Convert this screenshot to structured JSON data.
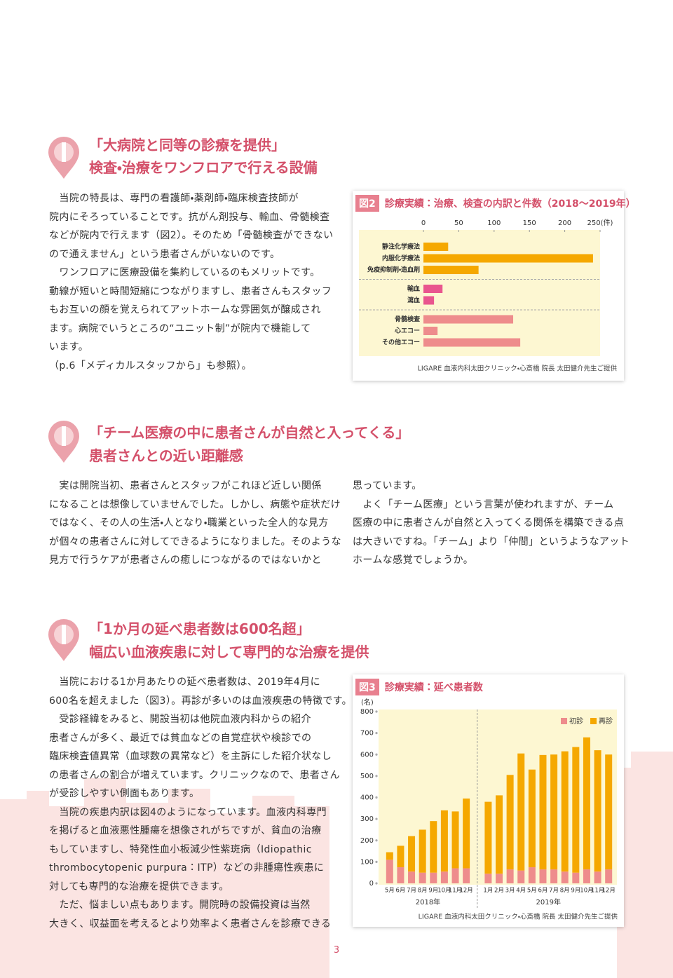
{
  "sections": [
    {
      "heading": [
        "「大病院と同等の診療を提供」",
        "検査・治療をワンフロアで行える設備"
      ],
      "columns": [
        [
          "　当院の特長は、専門の看護師・薬剤師・臨床検査技師が",
          "院内にそろっていることです。抗がん剤投与、輸血、骨髄検査",
          "などが院内で行えます（図2）。そのため「骨髄検査ができない",
          "ので通えません」という患者さんがいないのです。",
          "　ワンフロアに医療設備を集約しているのもメリットです。",
          "動線が短いと時間短縮につながりますし、患者さんもスタッフ",
          "もお互いの顔を覚えられてアットホームな雰囲気が醸成され",
          "ます。病院でいうところの“ユニット制”が院内で機能して",
          "います。",
          "（p.6「メディカルスタッフから」も参照）。"
        ]
      ]
    },
    {
      "heading": [
        "「チーム医療の中に患者さんが自然と入ってくる」",
        "患者さんとの近い距離感"
      ],
      "columns": [
        [
          "　実は開院当初、患者さんとスタッフがこれほど近しい関係",
          "になることは想像していませんでした。しかし、病態や症状だけ",
          "ではなく、その人の生活・人となり・職業といった全人的な見方",
          "が個々の患者さんに対してできるようになりました。そのような",
          "見方で行うケアが患者さんの癒しにつながるのではないかと"
        ],
        [
          "思っています。",
          "　よく「チーム医療」という言葉が使われますが、チーム",
          "医療の中に患者さんが自然と入ってくる関係を構築できる点",
          "は大きいですね。「チーム」より「仲間」というようなアット",
          "ホームな感覚でしょうか。"
        ]
      ]
    },
    {
      "heading": [
        "「1か月の延べ患者数は600名超」",
        "幅広い血液疾患に対して専門的な治療を提供"
      ],
      "columns": [
        [
          "　当院における1か月あたりの延べ患者数は、2019年4月に",
          "600名を超えました（図3）。再診が多いのは血液疾患の特徴です。",
          "　受診経緯をみると、開設当初は他院血液内科からの紹介",
          "患者さんが多く、最近では貧血などの自覚症状や検診での",
          "臨床検査値異常（血球数の異常など）を主訴にした紹介状なし",
          "の患者さんの割合が増えています。クリニックなので、患者さん",
          "が受診しやすい側面もあります。",
          "　当院の疾患内訳は図4のようになっています。血液内科専門",
          "を掲げると血液悪性腫瘍を想像されがちですが、貧血の治療",
          "もしていますし、特発性血小板減少性紫斑病（Idiopathic",
          "thrombocytopenic purpura：ITP）などの非腫瘍性疾患に",
          "対しても専門的な治療を提供できます。",
          "　ただ、悩ましい点もあります。開院時の設備投資は当然",
          "大きく、収益面を考えるとより効率よく患者さんを診療できる"
        ]
      ]
    }
  ],
  "chart_data": [
    {
      "type": "bar",
      "orientation": "horizontal",
      "figure_label": "図2",
      "title": "診療実績：治療、検査の内訳と件数（2018〜2019年）",
      "categories": [
        "静注化学療法",
        "内服化学療法",
        "免疫抑制剤・造血剤",
        "輸血",
        "瀉血",
        "骨髄検査",
        "心エコー",
        "その他エコー"
      ],
      "values": [
        35,
        240,
        78,
        27,
        15,
        127,
        20,
        137
      ],
      "colors": [
        "#f5a800",
        "#f5a800",
        "#f5a800",
        "#e9568e",
        "#e9568e",
        "#ee8c8c",
        "#ee8c8c",
        "#ee8c8c"
      ],
      "xlim": [
        0,
        250
      ],
      "xticks": [
        0,
        50,
        100,
        150,
        200,
        {
          "value": 250,
          "label": "250(件)"
        }
      ],
      "source": "LIGARE 血液内科太田クリニック・心斎橋 院長 太田健介先生ご提供"
    },
    {
      "type": "bar",
      "stacked": true,
      "figure_label": "図3",
      "title": "診療実績：延べ患者数",
      "y_unit": "(名)",
      "groups": [
        {
          "label": "2018年",
          "categories": [
            "5月",
            "6月",
            "7月",
            "8月",
            "9月",
            "10月",
            "11月",
            "12月"
          ]
        },
        {
          "label": "2019年",
          "categories": [
            "1月",
            "2月",
            "3月",
            "4月",
            "5月",
            "6月",
            "7月",
            "8月",
            "9月",
            "10月",
            "11月",
            "12月"
          ]
        }
      ],
      "series": [
        {
          "name": "初診",
          "color": "#ee8c8c",
          "values": [
            110,
            75,
            55,
            50,
            50,
            55,
            70,
            70,
            45,
            45,
            65,
            60,
            75,
            65,
            65,
            55,
            50,
            65,
            55,
            65
          ]
        },
        {
          "name": "再診",
          "color": "#f5a800",
          "values": [
            35,
            100,
            165,
            200,
            240,
            285,
            265,
            325,
            335,
            365,
            440,
            545,
            455,
            533,
            535,
            560,
            585,
            615,
            565,
            535
          ]
        }
      ],
      "ylim": [
        0,
        800
      ],
      "yticks": [
        0,
        100,
        200,
        300,
        400,
        500,
        600,
        700,
        800
      ],
      "source": "LIGARE 血液内科太田クリニック・心斎橋 院長 太田健介先生ご提供"
    }
  ],
  "page_number": "3"
}
